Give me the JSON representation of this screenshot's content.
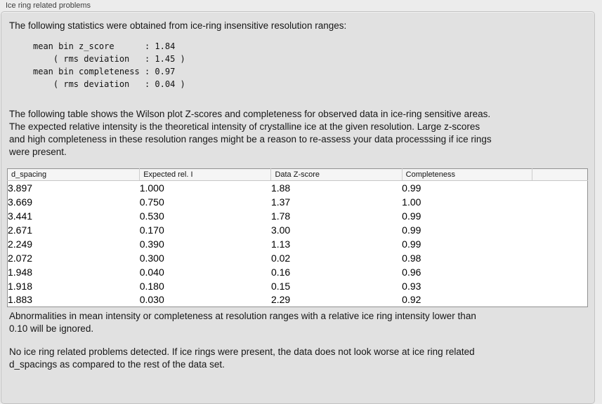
{
  "group": {
    "title": "Ice ring related problems"
  },
  "intro": "The following statistics were obtained from ice-ring insensitive resolution ranges:",
  "stats": {
    "lines": [
      "mean bin z_score      : 1.84",
      "    ( rms deviation   : 1.45 )",
      "mean bin completeness : 0.97",
      "    ( rms deviation   : 0.04 )"
    ],
    "mean_bin_z_score": "1.84",
    "z_score_rms_deviation": "1.45",
    "mean_bin_completeness": "0.97",
    "completeness_rms_deviation": "0.04"
  },
  "table_intro": "The following table shows the Wilson plot Z-scores and completeness for observed data in ice-ring sensitive areas.\nThe expected relative intensity is the theoretical intensity of crystalline ice at the given resolution. Large z-scores\nand high completeness in these resolution ranges might be a reason to re-assess your data processsing if ice rings\nwere present.",
  "table": {
    "columns": [
      "d_spacing",
      "Expected rel. I",
      "Data Z-score",
      "Completeness",
      ""
    ],
    "rows": [
      [
        "3.897",
        "1.000",
        "1.88",
        "0.99"
      ],
      [
        "3.669",
        "0.750",
        "1.37",
        "1.00"
      ],
      [
        "3.441",
        "0.530",
        "1.78",
        "0.99"
      ],
      [
        "2.671",
        "0.170",
        "3.00",
        "0.99"
      ],
      [
        "2.249",
        "0.390",
        "1.13",
        "0.99"
      ],
      [
        "2.072",
        "0.300",
        "0.02",
        "0.98"
      ],
      [
        "1.948",
        "0.040",
        "0.16",
        "0.96"
      ],
      [
        "1.918",
        "0.180",
        "0.15",
        "0.93"
      ],
      [
        "1.883",
        "0.030",
        "2.29",
        "0.92"
      ]
    ]
  },
  "ignore_note": "Abnormalities in mean intensity or completeness at resolution ranges with a relative ice ring intensity lower than\n0.10 will be ignored.",
  "conclusion": "No ice ring related problems detected. If ice rings were present, the data does not look worse at ice ring related\nd_spacings as compared to the rest of the data set.",
  "colors": {
    "panel_background": "#e1e1e1",
    "page_background": "#ececec",
    "table_border": "#919191",
    "header_background": "#f5f5f5"
  }
}
